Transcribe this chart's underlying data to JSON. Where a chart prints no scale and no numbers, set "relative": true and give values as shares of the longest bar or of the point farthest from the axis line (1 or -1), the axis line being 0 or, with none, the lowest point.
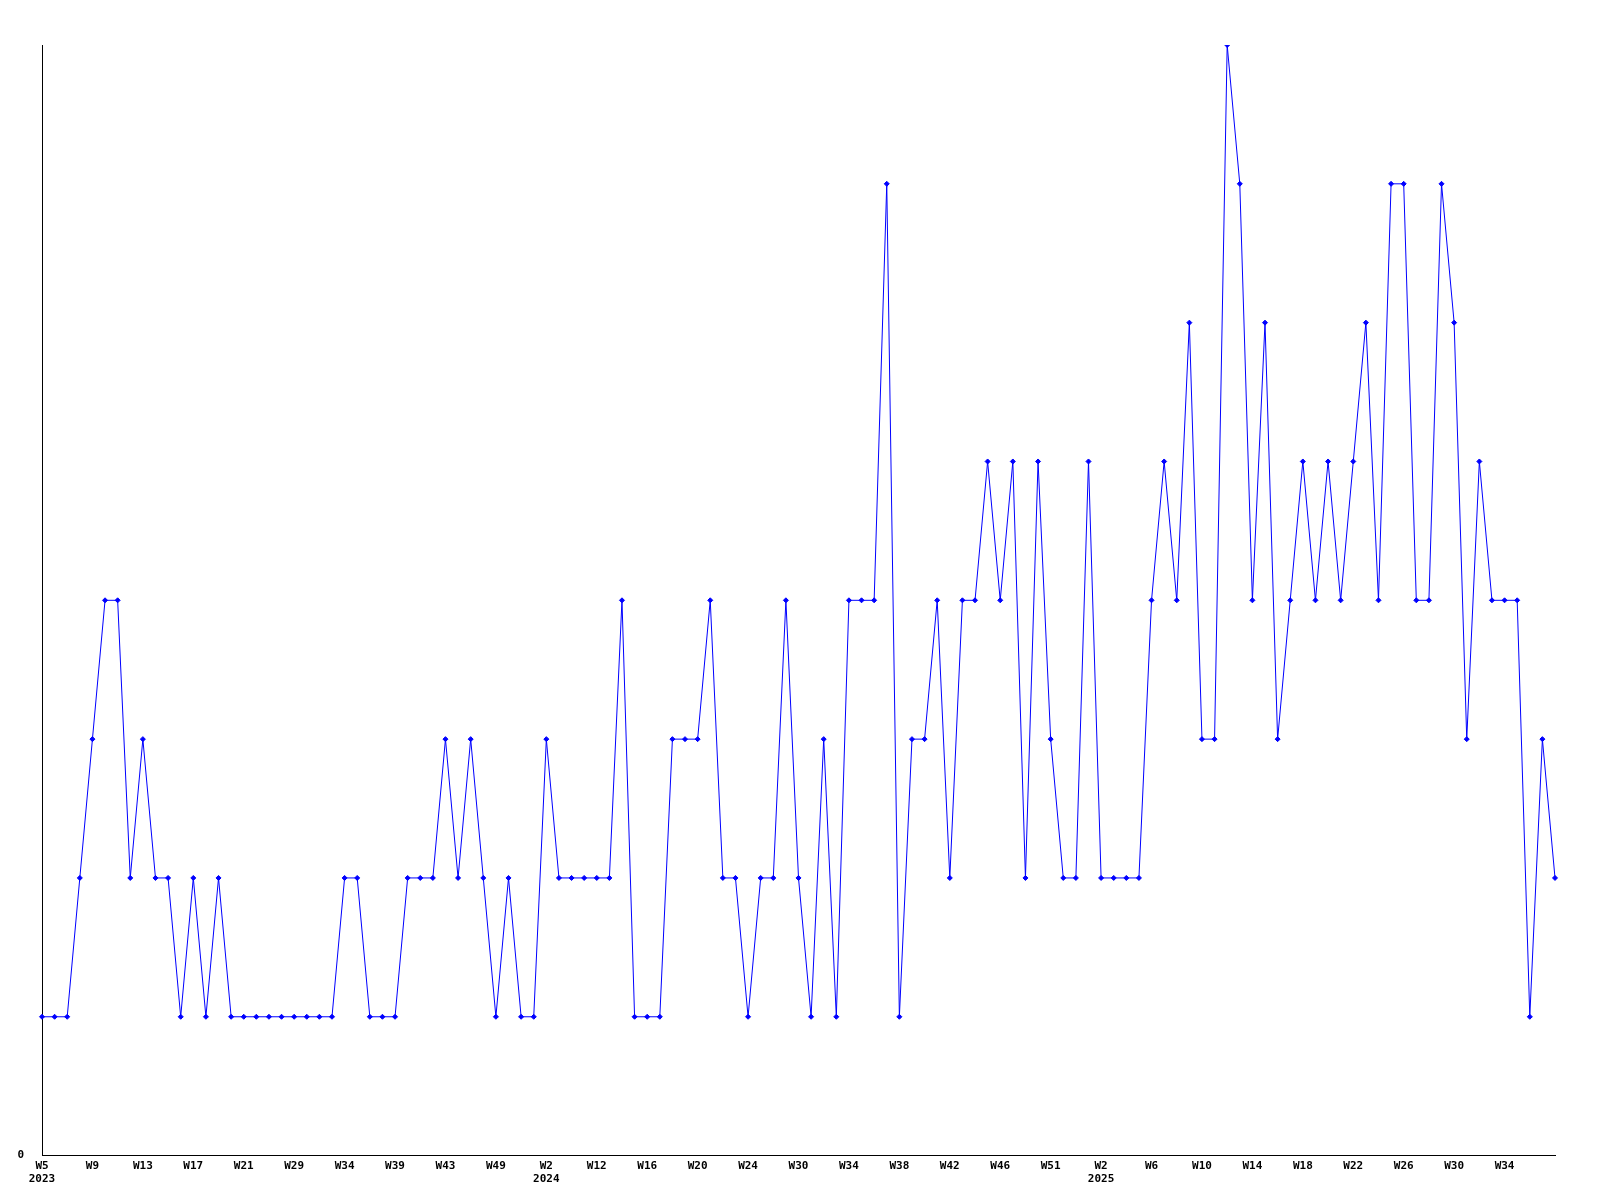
{
  "chart_data": {
    "type": "line",
    "relative": true,
    "annotations": [
      "0"
    ],
    "categories": [
      "W5\n2023",
      null,
      null,
      null,
      "W9",
      null,
      null,
      null,
      "W13",
      null,
      null,
      null,
      "W17",
      null,
      null,
      null,
      "W21",
      null,
      null,
      null,
      "W29",
      null,
      null,
      null,
      "W34",
      null,
      null,
      null,
      "W39",
      null,
      null,
      null,
      "W43",
      null,
      null,
      null,
      "W49",
      null,
      null,
      null,
      "W2\n2024",
      null,
      null,
      null,
      "W12",
      null,
      null,
      null,
      "W16",
      null,
      null,
      null,
      "W20",
      null,
      null,
      null,
      "W24",
      null,
      null,
      null,
      "W30",
      null,
      null,
      null,
      "W34",
      null,
      null,
      null,
      "W38",
      null,
      null,
      null,
      "W42",
      null,
      null,
      null,
      "W46",
      null,
      null,
      null,
      "W51",
      null,
      null,
      null,
      "W2\n2025",
      null,
      null,
      null,
      "W6",
      null,
      null,
      null,
      "W10",
      null,
      null,
      null,
      "W14",
      null,
      null,
      null,
      "W18",
      null,
      null,
      null,
      "W22",
      null,
      null,
      null,
      "W26",
      null,
      null,
      null,
      "W30",
      null,
      null,
      null,
      "W34",
      null,
      null,
      null,
      null
    ],
    "series": [
      {
        "color": "#0000ff",
        "values": [
          0.125,
          0.125,
          0.125,
          0.25,
          0.375,
          0.5,
          0.5,
          0.25,
          0.375,
          0.25,
          0.25,
          0.125,
          0.25,
          0.125,
          0.25,
          0.125,
          0.125,
          0.125,
          0.125,
          0.125,
          0.125,
          0.125,
          0.125,
          0.125,
          0.25,
          0.25,
          0.125,
          0.125,
          0.125,
          0.25,
          0.25,
          0.25,
          0.375,
          0.25,
          0.375,
          0.25,
          0.125,
          0.25,
          0.125,
          0.125,
          0.375,
          0.25,
          0.25,
          0.25,
          0.25,
          0.25,
          0.5,
          0.125,
          0.125,
          0.125,
          0.375,
          0.375,
          0.375,
          0.5,
          0.25,
          0.25,
          0.125,
          0.25,
          0.25,
          0.5,
          0.25,
          0.125,
          0.375,
          0.125,
          0.5,
          0.5,
          0.5,
          0.875,
          0.125,
          0.375,
          0.375,
          0.5,
          0.25,
          0.5,
          0.5,
          0.625,
          0.5,
          0.625,
          0.25,
          0.625,
          0.375,
          0.25,
          0.25,
          0.625,
          0.25,
          0.25,
          0.25,
          0.25,
          0.5,
          0.625,
          0.5,
          0.75,
          0.375,
          0.375,
          1,
          0.875,
          0.5,
          0.75,
          0.375,
          0.5,
          0.625,
          0.5,
          0.625,
          0.5,
          0.625,
          0.75,
          0.5,
          0.875,
          0.875,
          0.5,
          0.5,
          0.875,
          0.75,
          0.375,
          0.625,
          0.5,
          0.5,
          0.5,
          0.125,
          0.375,
          0.25
        ]
      }
    ],
    "grid": false,
    "legend": false,
    "marker": "diamond",
    "line_style": "solid"
  }
}
